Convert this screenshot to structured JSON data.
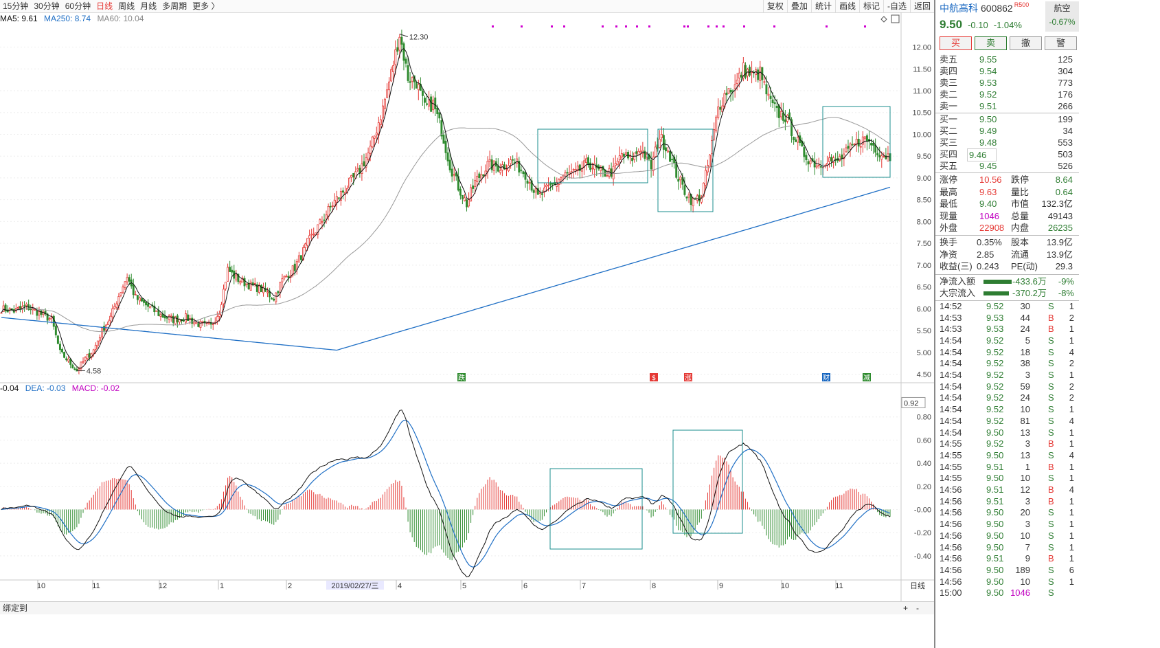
{
  "toolbar": {
    "periods": [
      "15分钟",
      "30分钟",
      "60分钟",
      "日线",
      "周线",
      "月线",
      "多周期",
      "更多 〉"
    ],
    "active_period": "日线",
    "tools": [
      "复权",
      "叠加",
      "统计",
      "画线",
      "标记",
      "-自选",
      "返回"
    ]
  },
  "ma_legend": {
    "ma5": "MA5: 9.61",
    "ma250": "MA250: 8.74",
    "ma60": "MA60: 10.04"
  },
  "macd_legend": {
    "dif": "-0.04",
    "dea": "DEA: -0.03",
    "macd": "MACD: -0.02"
  },
  "colors": {
    "up": "#e53935",
    "down": "#2e8b2e",
    "ma5": "#111111",
    "ma60": "#999999",
    "ma250": "#1f6fc5",
    "box": "#1a8c8c",
    "event_dot": "#d000d0"
  },
  "chart_data": {
    "type": "candlestick",
    "price_axis": {
      "ticks": [
        "12.00",
        "11.50",
        "11.00",
        "10.50",
        "10.00",
        "9.50",
        "9.00",
        "8.50",
        "8.00",
        "7.50",
        "7.00",
        "6.50",
        "6.00",
        "5.50",
        "5.00",
        "4.50"
      ],
      "range": [
        4.35,
        12.45
      ]
    },
    "macd_axis": {
      "ticks": [
        "0.80",
        "0.60",
        "0.40",
        "0.20",
        "-0.00",
        "-0.20",
        "-0.40"
      ],
      "current": "0.92",
      "range": [
        -0.68,
        1.0
      ]
    },
    "x_labels": [
      "10",
      "11",
      "12",
      "1",
      "2",
      "2019/02/27/三",
      "4",
      "5",
      "6",
      "7",
      "8",
      "9",
      "10",
      "11"
    ],
    "annotations": {
      "high": "12.30",
      "low": "4.58"
    },
    "event_markers": [
      "跌",
      "$",
      "涨",
      "财",
      "减"
    ],
    "period_label": "日线",
    "candle_count": 260,
    "anchors": [
      [
        0,
        6.0
      ],
      [
        6,
        5.95
      ],
      [
        12,
        6.05
      ],
      [
        18,
        5.9
      ],
      [
        24,
        5.75
      ],
      [
        28,
        5.0
      ],
      [
        32,
        4.8
      ],
      [
        36,
        4.58
      ],
      [
        40,
        4.85
      ],
      [
        44,
        5.05
      ],
      [
        48,
        5.5
      ],
      [
        52,
        5.8
      ],
      [
        56,
        6.3
      ],
      [
        60,
        6.75
      ],
      [
        64,
        6.25
      ],
      [
        70,
        6.05
      ],
      [
        76,
        5.85
      ],
      [
        82,
        5.75
      ],
      [
        88,
        5.8
      ],
      [
        94,
        5.65
      ],
      [
        100,
        5.6
      ],
      [
        104,
        5.95
      ],
      [
        108,
        6.9
      ],
      [
        112,
        6.7
      ],
      [
        118,
        6.55
      ],
      [
        124,
        6.45
      ],
      [
        130,
        6.25
      ],
      [
        134,
        6.65
      ],
      [
        140,
        6.95
      ],
      [
        146,
        7.5
      ],
      [
        152,
        7.95
      ],
      [
        158,
        8.4
      ],
      [
        164,
        8.75
      ],
      [
        170,
        9.1
      ],
      [
        176,
        9.65
      ],
      [
        182,
        10.6
      ],
      [
        186,
        11.4
      ],
      [
        190,
        12.3
      ],
      [
        194,
        11.3
      ],
      [
        198,
        11.2
      ],
      [
        202,
        10.6
      ],
      [
        206,
        10.7
      ],
      [
        210,
        10.1
      ],
      [
        214,
        9.3
      ],
      [
        218,
        8.8
      ],
      [
        222,
        8.4
      ],
      [
        226,
        8.9
      ],
      [
        232,
        9.3
      ],
      [
        238,
        9.25
      ],
      [
        244,
        9.4
      ],
      [
        250,
        9.1
      ],
      [
        256,
        8.55
      ],
      [
        262,
        8.8
      ],
      [
        268,
        9.05
      ],
      [
        274,
        9.1
      ],
      [
        280,
        9.35
      ],
      [
        286,
        9.1
      ],
      [
        292,
        9.15
      ],
      [
        296,
        9.55
      ],
      [
        300,
        9.4
      ],
      [
        305,
        9.7
      ],
      [
        310,
        9.25
      ],
      [
        314,
        9.95
      ],
      [
        318,
        9.65
      ],
      [
        322,
        9.1
      ],
      [
        326,
        8.7
      ],
      [
        330,
        8.45
      ],
      [
        334,
        8.6
      ],
      [
        338,
        9.5
      ],
      [
        342,
        10.6
      ],
      [
        346,
        11.0
      ],
      [
        350,
        11.1
      ],
      [
        354,
        11.5
      ],
      [
        358,
        11.35
      ],
      [
        362,
        11.4
      ],
      [
        366,
        10.8
      ],
      [
        370,
        10.5
      ],
      [
        374,
        10.4
      ],
      [
        378,
        10.0
      ],
      [
        382,
        9.6
      ],
      [
        386,
        9.4
      ],
      [
        390,
        9.3
      ],
      [
        394,
        9.45
      ],
      [
        398,
        9.35
      ],
      [
        404,
        9.6
      ],
      [
        408,
        9.8
      ],
      [
        412,
        9.9
      ],
      [
        416,
        9.75
      ],
      [
        420,
        9.55
      ],
      [
        424,
        9.5
      ]
    ],
    "series": [
      {
        "name": "MA5",
        "values": "computed"
      },
      {
        "name": "MA60",
        "values": "computed"
      },
      {
        "name": "MA250",
        "values": "computed"
      },
      {
        "name": "DEA",
        "values": "computed"
      },
      {
        "name": "MACD",
        "values": "computed"
      }
    ]
  },
  "right_panel": {
    "name": "中航高科",
    "code": "600862",
    "tag": "R500",
    "price": "9.50",
    "change": "-0.10",
    "change_pct": "-1.04%",
    "sector": {
      "name": "航空",
      "pct": "-0.67%"
    },
    "buttons": [
      "买",
      "卖",
      "撤",
      "警"
    ],
    "asks": [
      {
        "label": "卖五",
        "price": "9.55",
        "vol": "125"
      },
      {
        "label": "卖四",
        "price": "9.54",
        "vol": "304"
      },
      {
        "label": "卖三",
        "price": "9.53",
        "vol": "773"
      },
      {
        "label": "卖二",
        "price": "9.52",
        "vol": "176"
      },
      {
        "label": "卖一",
        "price": "9.51",
        "vol": "266"
      }
    ],
    "bids": [
      {
        "label": "买一",
        "price": "9.50",
        "vol": "199"
      },
      {
        "label": "买二",
        "price": "9.49",
        "vol": "34"
      },
      {
        "label": "买三",
        "price": "9.48",
        "vol": "553"
      },
      {
        "label": "买四",
        "price": "9.46",
        "vol": "503"
      },
      {
        "label": "买五",
        "price": "9.45",
        "vol": "526"
      }
    ],
    "stats": [
      {
        "l1": "涨停",
        "v1": "10.56",
        "c1": "red",
        "l2": "跌停",
        "v2": "8.64",
        "c2": "green"
      },
      {
        "l1": "最高",
        "v1": "9.63",
        "c1": "red",
        "l2": "量比",
        "v2": "0.64",
        "c2": "green"
      },
      {
        "l1": "最低",
        "v1": "9.40",
        "c1": "green",
        "l2": "市值",
        "v2": "132.3亿",
        "c2": ""
      },
      {
        "l1": "现量",
        "v1": "1046",
        "c1": "purple",
        "l2": "总量",
        "v2": "49143",
        "c2": ""
      },
      {
        "l1": "外盘",
        "v1": "22908",
        "c1": "red",
        "l2": "内盘",
        "v2": "26235",
        "c2": "green"
      }
    ],
    "stats2": [
      {
        "l1": "换手",
        "v1": "0.35%",
        "l2": "股本",
        "v2": "13.9亿"
      },
      {
        "l1": "净资",
        "v1": "2.85",
        "l2": "流通",
        "v2": "13.9亿"
      },
      {
        "l1": "收益(三)",
        "v1": "0.243",
        "l2": "PE(动)",
        "v2": "29.3"
      }
    ],
    "flows": [
      {
        "label": "净流入额",
        "value": "-433.6万",
        "pct": "-9%",
        "bar": 0.55
      },
      {
        "label": "大宗流入",
        "value": "-370.2万",
        "pct": "-8%",
        "bar": 0.5
      }
    ],
    "ticks": [
      {
        "t": "14:52",
        "p": "9.52",
        "v": "30",
        "s": "S",
        "n": "1"
      },
      {
        "t": "14:53",
        "p": "9.53",
        "v": "44",
        "s": "B",
        "n": "2"
      },
      {
        "t": "14:53",
        "p": "9.53",
        "v": "24",
        "s": "B",
        "n": "1"
      },
      {
        "t": "14:54",
        "p": "9.52",
        "v": "5",
        "s": "S",
        "n": "1"
      },
      {
        "t": "14:54",
        "p": "9.52",
        "v": "18",
        "s": "S",
        "n": "4"
      },
      {
        "t": "14:54",
        "p": "9.52",
        "v": "38",
        "s": "S",
        "n": "2"
      },
      {
        "t": "14:54",
        "p": "9.52",
        "v": "3",
        "s": "S",
        "n": "1"
      },
      {
        "t": "14:54",
        "p": "9.52",
        "v": "59",
        "s": "S",
        "n": "2"
      },
      {
        "t": "14:54",
        "p": "9.52",
        "v": "24",
        "s": "S",
        "n": "2"
      },
      {
        "t": "14:54",
        "p": "9.52",
        "v": "10",
        "s": "S",
        "n": "1"
      },
      {
        "t": "14:54",
        "p": "9.52",
        "v": "81",
        "s": "S",
        "n": "4"
      },
      {
        "t": "14:54",
        "p": "9.50",
        "v": "13",
        "s": "S",
        "n": "1"
      },
      {
        "t": "14:55",
        "p": "9.52",
        "v": "3",
        "s": "B",
        "n": "1"
      },
      {
        "t": "14:55",
        "p": "9.50",
        "v": "13",
        "s": "S",
        "n": "4"
      },
      {
        "t": "14:55",
        "p": "9.51",
        "v": "1",
        "s": "B",
        "n": "1"
      },
      {
        "t": "14:55",
        "p": "9.50",
        "v": "10",
        "s": "S",
        "n": "1"
      },
      {
        "t": "14:56",
        "p": "9.51",
        "v": "12",
        "s": "B",
        "n": "4"
      },
      {
        "t": "14:56",
        "p": "9.51",
        "v": "3",
        "s": "B",
        "n": "1"
      },
      {
        "t": "14:56",
        "p": "9.50",
        "v": "20",
        "s": "S",
        "n": "1"
      },
      {
        "t": "14:56",
        "p": "9.50",
        "v": "3",
        "s": "S",
        "n": "1"
      },
      {
        "t": "14:56",
        "p": "9.50",
        "v": "10",
        "s": "S",
        "n": "1"
      },
      {
        "t": "14:56",
        "p": "9.50",
        "v": "7",
        "s": "S",
        "n": "1"
      },
      {
        "t": "14:56",
        "p": "9.51",
        "v": "9",
        "s": "B",
        "n": "1"
      },
      {
        "t": "14:56",
        "p": "9.50",
        "v": "189",
        "s": "S",
        "n": "6"
      },
      {
        "t": "14:56",
        "p": "9.50",
        "v": "10",
        "s": "S",
        "n": "1"
      },
      {
        "t": "15:00",
        "p": "9.50",
        "v": "1046",
        "s": "S",
        "n": ""
      }
    ]
  },
  "bottom": {
    "bind_label": "绑定到",
    "plus": "+",
    "minus": "-"
  }
}
